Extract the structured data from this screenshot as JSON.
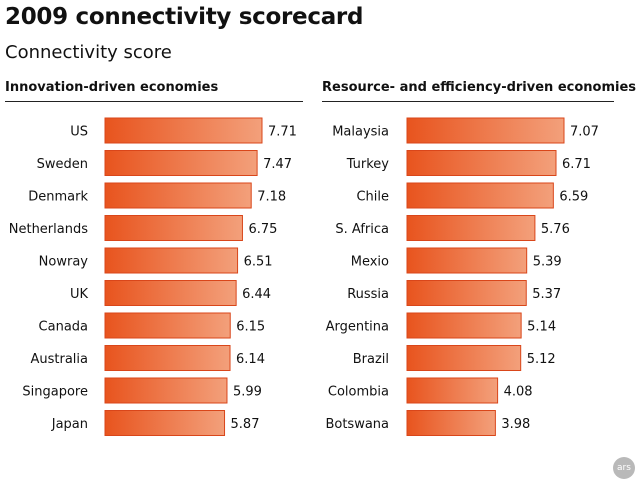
{
  "header": {
    "title": "2009 connectivity scorecard",
    "subtitle": "Connectivity score"
  },
  "colors": {
    "bar_dark": "#e8541e",
    "bar_light": "#f3a07b",
    "bar_border": "#d9461a",
    "text": "#111111",
    "logo_bg": "#b9b9b9"
  },
  "logo": {
    "text": "ars"
  },
  "chart_data": [
    {
      "type": "bar",
      "orientation": "horizontal",
      "title": "Innovation-driven economies",
      "categories": [
        "US",
        "Sweden",
        "Denmark",
        "Netherlands",
        "Nowray",
        "UK",
        "Canada",
        "Australia",
        "Singapore",
        "Japan"
      ],
      "values": [
        7.71,
        7.47,
        7.18,
        6.75,
        6.51,
        6.44,
        6.15,
        6.14,
        5.99,
        5.87
      ],
      "value_labels": [
        "7.71",
        "7.47",
        "7.18",
        "6.75",
        "6.51",
        "6.44",
        "6.15",
        "6.14",
        "5.99",
        "5.87"
      ],
      "xlim": [
        0,
        7.71
      ],
      "grid": false,
      "legend": "none"
    },
    {
      "type": "bar",
      "orientation": "horizontal",
      "title": "Resource- and efficiency-driven economies",
      "categories": [
        "Malaysia",
        "Turkey",
        "Chile",
        "S. Africa",
        "Mexio",
        "Russia",
        "Argentina",
        "Brazil",
        "Colombia",
        "Botswana"
      ],
      "values": [
        7.07,
        6.71,
        6.59,
        5.76,
        5.39,
        5.37,
        5.14,
        5.12,
        4.08,
        3.98
      ],
      "value_labels": [
        "7.07",
        "6.71",
        "6.59",
        "5.76",
        "5.39",
        "5.37",
        "5.14",
        "5.12",
        "4.08",
        "3.98"
      ],
      "xlim": [
        0,
        7.07
      ],
      "grid": false,
      "legend": "none"
    }
  ]
}
